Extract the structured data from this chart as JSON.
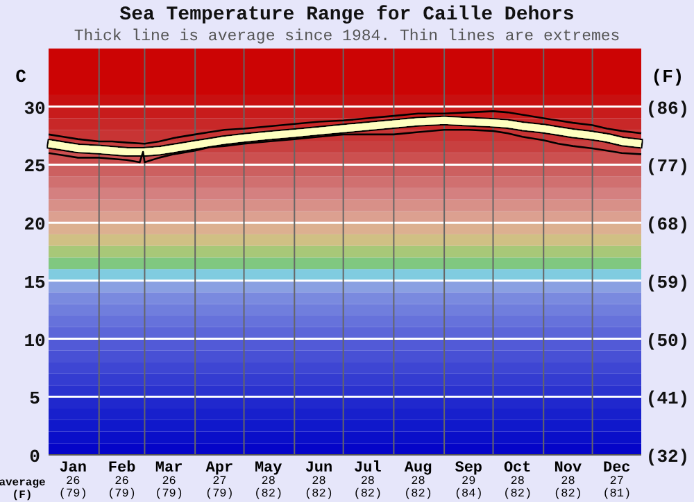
{
  "chart_data": {
    "type": "line",
    "title": "Sea Temperature Range for Caille Dehors",
    "subtitle": "Thick line is average since 1984. Thin lines are extremes",
    "ylabel": "C",
    "y2label": "(F)",
    "xlim": [
      "--01-01",
      "--12-31"
    ],
    "xticks": [
      {
        "value": "--01-16",
        "label": "Jan"
      },
      {
        "value": "--02-01",
        "label": null
      },
      {
        "value": "--02-15",
        "label": "Feb"
      },
      {
        "value": "--03-01",
        "label": null
      },
      {
        "value": "--03-16",
        "label": "Mar"
      },
      {
        "value": "--04-01",
        "label": null
      },
      {
        "value": "--04-16",
        "label": "Apr"
      },
      {
        "value": "--05-01",
        "label": null
      },
      {
        "value": "--05-16",
        "label": "May"
      },
      {
        "value": "--06-01",
        "label": null
      },
      {
        "value": "--06-16",
        "label": "Jun"
      },
      {
        "value": "--07-01",
        "label": null
      },
      {
        "value": "--07-16",
        "label": "Jul"
      },
      {
        "value": "--08-01",
        "label": null
      },
      {
        "value": "--08-16",
        "label": "Aug"
      },
      {
        "value": "--09-01",
        "label": null
      },
      {
        "value": "--09-16",
        "label": "Sep"
      },
      {
        "value": "--10-01",
        "label": null
      },
      {
        "value": "--10-16",
        "label": "Oct"
      },
      {
        "value": "--11-01",
        "label": null
      },
      {
        "value": "--11-16",
        "label": "Nov"
      },
      {
        "value": "--12-01",
        "label": null
      },
      {
        "value": "--12-16",
        "label": "Dec"
      }
    ],
    "ylim": [
      0,
      35
    ],
    "yticks": [
      0,
      5,
      10,
      15,
      20,
      25,
      30
    ],
    "y2lim": [
      32,
      95
    ],
    "y2ticks": [
      {
        "value": 32,
        "label": "(32)"
      },
      {
        "value": 41,
        "label": "(41)"
      },
      {
        "value": 50,
        "label": "(50)"
      },
      {
        "value": 59,
        "label": "(59)"
      },
      {
        "value": 68,
        "label": "(68)"
      },
      {
        "value": 77,
        "label": "(77)"
      },
      {
        "value": 86,
        "label": "(86)"
      }
    ],
    "grid": true,
    "bands": [
      {
        "axis": "y",
        "from": 0,
        "to": 1,
        "color": "#0505c8"
      },
      {
        "axis": "y",
        "from": 1,
        "to": 2,
        "color": "#0a0fc9"
      },
      {
        "axis": "y",
        "from": 2,
        "to": 3,
        "color": "#1018cb"
      },
      {
        "axis": "y",
        "from": 3,
        "to": 4,
        "color": "#1820cc"
      },
      {
        "axis": "y",
        "from": 4,
        "to": 5,
        "color": "#2028cd"
      },
      {
        "axis": "y",
        "from": 5,
        "to": 6,
        "color": "#2a32cf"
      },
      {
        "axis": "y",
        "from": 6,
        "to": 7,
        "color": "#343cd1"
      },
      {
        "axis": "y",
        "from": 7,
        "to": 8,
        "color": "#3e46d3"
      },
      {
        "axis": "y",
        "from": 8,
        "to": 9,
        "color": "#4850d5"
      },
      {
        "axis": "y",
        "from": 9,
        "to": 10,
        "color": "#525ad7"
      },
      {
        "axis": "y",
        "from": 10,
        "to": 11,
        "color": "#5c66d9"
      },
      {
        "axis": "y",
        "from": 11,
        "to": 12,
        "color": "#6672db"
      },
      {
        "axis": "y",
        "from": 12,
        "to": 13,
        "color": "#707edd"
      },
      {
        "axis": "y",
        "from": 13,
        "to": 14,
        "color": "#7a8adf"
      },
      {
        "axis": "y",
        "from": 14,
        "to": 15,
        "color": "#8aa0e2"
      },
      {
        "axis": "y",
        "from": 15,
        "to": 16,
        "color": "#80cce0"
      },
      {
        "axis": "y",
        "from": 16,
        "to": 17,
        "color": "#80c880"
      },
      {
        "axis": "y",
        "from": 17,
        "to": 18,
        "color": "#a8c878"
      },
      {
        "axis": "y",
        "from": 18,
        "to": 19,
        "color": "#d0c084"
      },
      {
        "axis": "y",
        "from": 19,
        "to": 20,
        "color": "#dcb090"
      },
      {
        "axis": "y",
        "from": 20,
        "to": 21,
        "color": "#dca090"
      },
      {
        "axis": "y",
        "from": 21,
        "to": 22,
        "color": "#d89088"
      },
      {
        "axis": "y",
        "from": 22,
        "to": 23,
        "color": "#d48080"
      },
      {
        "axis": "y",
        "from": 23,
        "to": 24,
        "color": "#d07070"
      },
      {
        "axis": "y",
        "from": 24,
        "to": 25,
        "color": "#cc6060"
      },
      {
        "axis": "y",
        "from": 25,
        "to": 26,
        "color": "#cc5050"
      },
      {
        "axis": "y",
        "from": 26,
        "to": 27,
        "color": "#c84040"
      },
      {
        "axis": "y",
        "from": 27,
        "to": 28,
        "color": "#c83434"
      },
      {
        "axis": "y",
        "from": 28,
        "to": 29,
        "color": "#c82828"
      },
      {
        "axis": "y",
        "from": 29,
        "to": 30,
        "color": "#c81c1c"
      },
      {
        "axis": "y",
        "from": 30,
        "to": 31,
        "color": "#c81010"
      },
      {
        "axis": "y",
        "from": 31,
        "to": 35,
        "color": "#cc0404"
      }
    ],
    "series": [
      {
        "color": "#000000",
        "x": [
          "--01-01",
          "--01-10",
          "--01-19",
          "--02-01",
          "--02-09",
          "--02-18",
          "--03-01",
          "--03-10",
          "--03-19",
          "--04-01",
          "--04-10",
          "--04-19",
          "--05-01",
          "--05-16",
          "--06-01",
          "--06-16",
          "--07-01",
          "--07-16",
          "--08-01",
          "--08-16",
          "--09-01",
          "--09-16",
          "--10-01",
          "--10-10",
          "--10-19",
          "--11-01",
          "--11-10",
          "--11-19",
          "--12-01",
          "--12-10",
          "--12-19",
          "--12-31"
        ],
        "values": [
          27.6,
          27.4,
          27.2,
          27.0,
          27.0,
          26.9,
          26.8,
          27.0,
          27.3,
          27.6,
          27.8,
          28.0,
          28.1,
          28.3,
          28.5,
          28.7,
          28.8,
          29.0,
          29.2,
          29.4,
          29.4,
          29.5,
          29.6,
          29.5,
          29.3,
          29.0,
          28.8,
          28.6,
          28.4,
          28.1,
          27.9,
          27.7
        ]
      },
      {
        "color": "#ffffc0",
        "x": [
          "--01-01",
          "--01-10",
          "--01-19",
          "--02-01",
          "--02-09",
          "--02-18",
          "--03-01",
          "--03-10",
          "--03-19",
          "--04-01",
          "--04-10",
          "--04-19",
          "--05-01",
          "--05-16",
          "--06-01",
          "--06-16",
          "--07-01",
          "--07-16",
          "--08-01",
          "--08-16",
          "--09-01",
          "--09-16",
          "--10-01",
          "--10-10",
          "--10-19",
          "--11-01",
          "--11-10",
          "--11-19",
          "--12-01",
          "--12-10",
          "--12-19",
          "--12-31"
        ],
        "values": [
          26.8,
          26.6,
          26.4,
          26.3,
          26.2,
          26.1,
          26.1,
          26.2,
          26.4,
          26.7,
          26.9,
          27.1,
          27.3,
          27.5,
          27.7,
          27.9,
          28.1,
          28.3,
          28.5,
          28.7,
          28.8,
          28.7,
          28.6,
          28.5,
          28.3,
          28.1,
          27.9,
          27.7,
          27.5,
          27.3,
          27.0,
          26.8
        ]
      },
      {
        "color": "#000000",
        "x": [
          "--01-01",
          "--01-10",
          "--01-19",
          "--02-01",
          "--02-09",
          "--02-18",
          "--02-26",
          "--02-28",
          "--03-01",
          "--03-10",
          "--03-19",
          "--04-01",
          "--04-10",
          "--04-19",
          "--05-01",
          "--05-16",
          "--06-01",
          "--06-16",
          "--07-01",
          "--07-16",
          "--08-01",
          "--08-16",
          "--09-01",
          "--09-16",
          "--10-01",
          "--10-10",
          "--10-19",
          "--11-01",
          "--11-10",
          "--11-19",
          "--12-01",
          "--12-10",
          "--12-19",
          "--12-31"
        ],
        "values": [
          26.0,
          25.8,
          25.6,
          25.6,
          25.5,
          25.4,
          25.2,
          26.1,
          25.2,
          25.6,
          25.9,
          26.2,
          26.5,
          26.6,
          26.8,
          27.0,
          27.2,
          27.4,
          27.6,
          27.6,
          27.6,
          27.8,
          28.0,
          28.0,
          27.9,
          27.7,
          27.4,
          27.1,
          26.8,
          26.6,
          26.4,
          26.2,
          26.0,
          25.9
        ]
      }
    ],
    "annotations": [
      "average",
      "(F)",
      "26 (79)",
      "26 (79)",
      "26 (79)",
      "27 (79)",
      "28 (82)",
      "28 (82)",
      "28 (82)",
      "28 (82)",
      "29 (84)",
      "28 (82)",
      "28 (82)",
      "27 (81)"
    ]
  }
}
